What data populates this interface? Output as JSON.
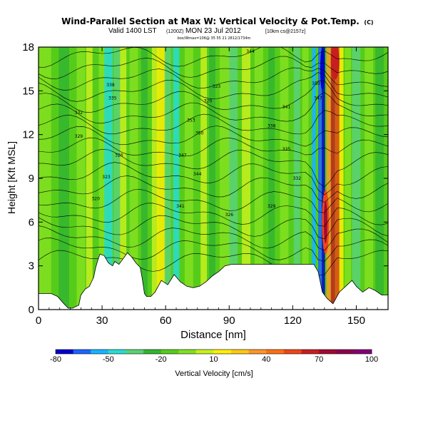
{
  "title": {
    "main": "Wind-Parallel Section at Max W: Vertical Velocity & Pot.Temp.",
    "badge": "(C)",
    "valid_line": "Valid 1400 LST",
    "valid_time_code": "(1200Z)",
    "valid_date": "MON 23 Jul 2012",
    "run_info": "[10km cs@2157z]",
    "subline": "box/Wmax=106@ 35 55 21 2812/1734m"
  },
  "chart_data": {
    "type": "heatmap",
    "xlabel": "Distance [nm]",
    "ylabel": "Height [Kft MSL]",
    "xlim": [
      0,
      165
    ],
    "ylim": [
      0,
      18
    ],
    "xticks": [
      "0",
      "30",
      "60",
      "90",
      "120",
      "150"
    ],
    "yticks": [
      "0",
      "3",
      "6",
      "9",
      "12",
      "15",
      "18"
    ],
    "colorbar": {
      "label": "Vertical Velocity [cm/s]",
      "ticks": [
        "-80",
        "-50",
        "-20",
        "10",
        "40",
        "70",
        "100"
      ],
      "colors": [
        "#0000cc",
        "#1c64ff",
        "#16b4ff",
        "#28dcd2",
        "#5ad278",
        "#32b430",
        "#56cc1a",
        "#82e020",
        "#c8f01e",
        "#fff000",
        "#ffc814",
        "#ff9628",
        "#ff6e14",
        "#f04614",
        "#c81e1e",
        "#a00a32",
        "#8c0050",
        "#820078"
      ]
    },
    "contour_labels": [
      "320",
      "323",
      "326",
      "329",
      "332",
      "335",
      "338",
      "341",
      "344",
      "347",
      "350",
      "353"
    ],
    "terrain_ft": [
      [
        0,
        1.1
      ],
      [
        6,
        1.1
      ],
      [
        9,
        0.9
      ],
      [
        12,
        0.4
      ],
      [
        14,
        0.1
      ],
      [
        16,
        0.1
      ],
      [
        19,
        0.3
      ],
      [
        20,
        1.0
      ],
      [
        22,
        1.4
      ],
      [
        24,
        1.6
      ],
      [
        26,
        2.2
      ],
      [
        27,
        2.9
      ],
      [
        28,
        3.4
      ],
      [
        29,
        3.8
      ],
      [
        31,
        3.7
      ],
      [
        33,
        3.2
      ],
      [
        35,
        3.0
      ],
      [
        36,
        3.3
      ],
      [
        38,
        3.1
      ],
      [
        40,
        3.5
      ],
      [
        42,
        3.9
      ],
      [
        44,
        3.6
      ],
      [
        46,
        3.2
      ],
      [
        48,
        2.9
      ],
      [
        49,
        2.1
      ],
      [
        50,
        1.1
      ],
      [
        51,
        0.9
      ],
      [
        53,
        0.9
      ],
      [
        55,
        1.2
      ],
      [
        58,
        2.0
      ],
      [
        61,
        1.7
      ],
      [
        64,
        2.4
      ],
      [
        67,
        1.9
      ],
      [
        70,
        1.6
      ],
      [
        73,
        1.5
      ],
      [
        76,
        1.6
      ],
      [
        79,
        1.9
      ],
      [
        82,
        2.3
      ],
      [
        85,
        2.6
      ],
      [
        88,
        3.0
      ],
      [
        91,
        3.1
      ],
      [
        94,
        3.1
      ],
      [
        98,
        3.1
      ],
      [
        102,
        3.1
      ],
      [
        106,
        3.1
      ],
      [
        110,
        3.1
      ],
      [
        114,
        3.1
      ],
      [
        118,
        3.1
      ],
      [
        122,
        3.1
      ],
      [
        126,
        3.1
      ],
      [
        128,
        3.1
      ],
      [
        130,
        3.1
      ],
      [
        132,
        2.6
      ],
      [
        134,
        1.2
      ],
      [
        136,
        0.8
      ],
      [
        139,
        0.4
      ],
      [
        142,
        1.2
      ],
      [
        145,
        1.6
      ],
      [
        148,
        2.0
      ],
      [
        150,
        1.6
      ],
      [
        153,
        1.2
      ],
      [
        156,
        1.5
      ],
      [
        159,
        1.3
      ],
      [
        162,
        1.0
      ],
      [
        165,
        1.0
      ]
    ]
  },
  "palette": {
    "background": "#ffffff",
    "field_base": "#56cc1a",
    "terrain_fill": "#ffffff",
    "contour_line": "#000000"
  }
}
